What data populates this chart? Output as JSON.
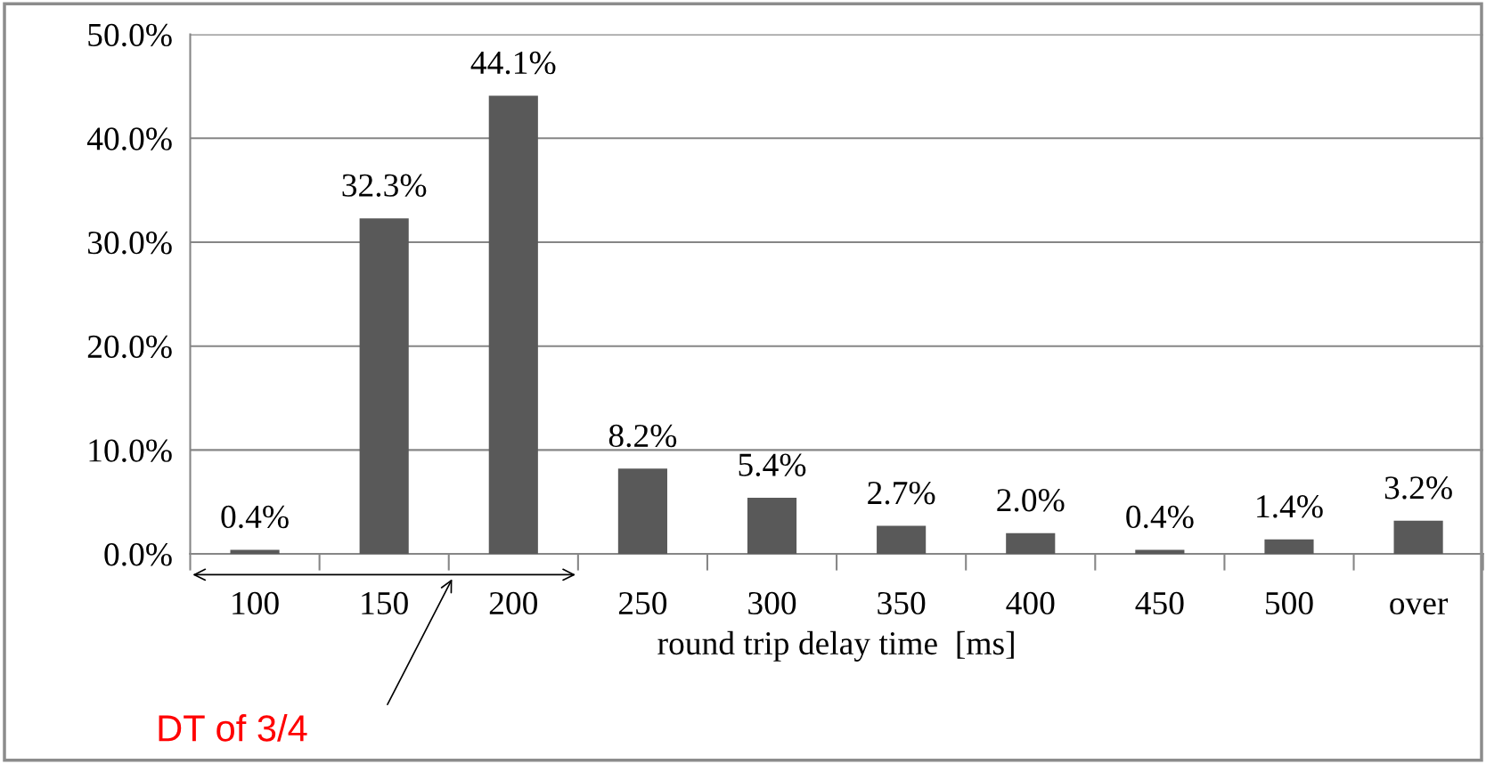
{
  "chart_data": {
    "type": "bar",
    "xlabel": "round trip delay time  [ms]",
    "categories": [
      "100",
      "150",
      "200",
      "250",
      "300",
      "350",
      "400",
      "450",
      "500",
      "over"
    ],
    "values": [
      0.4,
      32.3,
      44.1,
      8.2,
      5.4,
      2.7,
      2.0,
      0.4,
      1.4,
      3.2
    ],
    "value_labels": [
      "0.4%",
      "32.3%",
      "44.1%",
      "8.2%",
      "5.4%",
      "2.7%",
      "2.0%",
      "0.4%",
      "1.4%",
      "3.2%"
    ],
    "color": "#595959",
    "ylim": [
      0,
      50
    ],
    "yticks": [
      {
        "value": 0,
        "label": "0.0%"
      },
      {
        "value": 10,
        "label": "10.0%"
      },
      {
        "value": 20,
        "label": "20.0%"
      },
      {
        "value": 30,
        "label": "30.0%"
      },
      {
        "value": 40,
        "label": "40.0%"
      },
      {
        "value": 50,
        "label": "50.0%"
      }
    ],
    "grid": "y",
    "annotations": [
      "DT of 3/4"
    ]
  }
}
